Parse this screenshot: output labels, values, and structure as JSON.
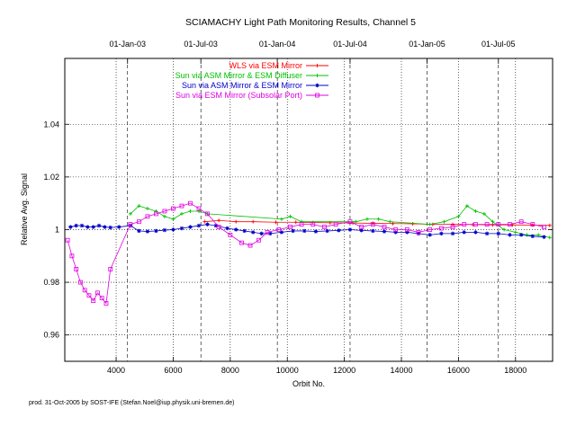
{
  "footer_note": "prod. 31-Oct-2005 by SOST-IFE (Stefan.Noel@iup.physik.uni-bremen.de)",
  "chart_data": {
    "type": "scatter",
    "title": "SCIAMACHY Light Path Monitoring Results, Channel 5",
    "xlabel": "Orbit No.",
    "ylabel": "Relative Avg. Signal",
    "xlim": [
      2200,
      19300
    ],
    "ylim": [
      0.95,
      1.065
    ],
    "x_ticks": [
      4000,
      6000,
      8000,
      10000,
      12000,
      14000,
      16000,
      18000
    ],
    "x_tick_labels": [
      "4000",
      "6000",
      "8000",
      "10000",
      "12000",
      "14000",
      "16000",
      "18000"
    ],
    "y_ticks": [
      0.96,
      0.98,
      1.0,
      1.02,
      1.04
    ],
    "y_tick_labels": [
      "0.96",
      "0.98",
      "1",
      "1.02",
      "1.04"
    ],
    "top_axis": {
      "ticks": [
        4400,
        6970,
        9650,
        12200,
        14900,
        17400
      ],
      "labels": [
        "01-Jan-03",
        "01-Jul-03",
        "01-Jan-04",
        "01-Jul-04",
        "01-Jan-05",
        "01-Jul-05"
      ]
    },
    "grid": true,
    "legend_position": "top",
    "series": [
      {
        "name": "WLS via ESM Mirror",
        "color": "#ff0000",
        "marker": "plus",
        "x": [
          7100,
          7600,
          8200,
          8800,
          9600,
          10300,
          10900,
          11500,
          12300,
          13000,
          13700,
          14400,
          15100,
          15800,
          16500,
          17200,
          17900,
          18600,
          19200
        ],
        "y": [
          1.003,
          1.0035,
          1.003,
          1.003,
          1.0028,
          1.0028,
          1.0027,
          1.0026,
          1.0025,
          1.0024,
          1.0023,
          1.0022,
          1.002,
          1.002,
          1.0019,
          1.0018,
          1.0018,
          1.0017,
          1.0016
        ]
      },
      {
        "name": "Sun via ASM Mirror & ESM Diffuser",
        "color": "#00c000",
        "marker": "plus",
        "x": [
          4500,
          4800,
          5100,
          5400,
          5700,
          6000,
          6300,
          6600,
          6900,
          7200,
          9800,
          10100,
          10500,
          12400,
          12800,
          13200,
          13600,
          15000,
          15500,
          16000,
          16300,
          16600,
          16900,
          17200,
          17600,
          18000,
          18400,
          18800,
          19200
        ],
        "y": [
          1.006,
          1.009,
          1.008,
          1.007,
          1.005,
          1.004,
          1.006,
          1.007,
          1.007,
          1.006,
          1.004,
          1.005,
          1.003,
          1.003,
          1.004,
          1.004,
          1.003,
          1.002,
          1.003,
          1.005,
          1.009,
          1.007,
          1.006,
          1.003,
          1.0,
          0.999,
          0.998,
          0.998,
          0.997
        ]
      },
      {
        "name": "Sun via ASM Mirror & ESM Mirror",
        "color": "#0000c8",
        "marker": "star",
        "x": [
          2400,
          2600,
          2800,
          3000,
          3200,
          3400,
          3600,
          3800,
          4100,
          4500,
          4800,
          5100,
          5400,
          5700,
          6000,
          6300,
          6600,
          6900,
          7200,
          7500,
          7900,
          8200,
          8500,
          8800,
          9100,
          9400,
          9800,
          10200,
          10600,
          11000,
          11400,
          11800,
          12200,
          12600,
          13000,
          13400,
          13800,
          14200,
          14600,
          15000,
          15400,
          15800,
          16200,
          16600,
          17000,
          17400,
          17800,
          18200,
          18600,
          19000
        ],
        "y": [
          1.001,
          1.0015,
          1.0015,
          1.001,
          1.001,
          1.0015,
          1.001,
          1.0008,
          1.001,
          1.0015,
          0.9995,
          0.9993,
          0.9995,
          0.9998,
          1.0,
          1.0005,
          1.001,
          1.0015,
          1.002,
          1.0015,
          1.0005,
          1.0,
          0.9995,
          0.999,
          0.9985,
          0.9985,
          0.999,
          0.9995,
          0.9995,
          0.9993,
          0.9995,
          0.9997,
          1.0,
          0.9997,
          0.9995,
          0.9993,
          0.999,
          0.999,
          0.9985,
          0.998,
          0.9985,
          0.9985,
          0.999,
          0.999,
          0.9985,
          0.9985,
          0.998,
          0.998,
          0.9975,
          0.9972
        ]
      },
      {
        "name": "Sun via ESM Mirror (Subsolar Port)",
        "color": "#e000e0",
        "marker": "square",
        "x": [
          2300,
          2450,
          2600,
          2750,
          2900,
          3050,
          3200,
          3350,
          3500,
          3650,
          3800,
          4500,
          4800,
          5100,
          5400,
          5700,
          6000,
          6300,
          6600,
          6900,
          7200,
          7600,
          8000,
          8400,
          8700,
          9000,
          9300,
          9700,
          10100,
          10500,
          10900,
          11300,
          11700,
          12200,
          12600,
          13000,
          13400,
          13800,
          14200,
          14600,
          15000,
          15400,
          15800,
          16200,
          16600,
          17000,
          17400,
          17800,
          18200,
          18600,
          19000
        ],
        "y": [
          0.996,
          0.99,
          0.985,
          0.98,
          0.977,
          0.975,
          0.973,
          0.976,
          0.974,
          0.972,
          0.985,
          1.002,
          1.003,
          1.005,
          1.006,
          1.007,
          1.008,
          1.009,
          1.01,
          1.008,
          1.006,
          1.001,
          0.998,
          0.995,
          0.994,
          0.996,
          0.999,
          1.0,
          1.001,
          1.002,
          1.002,
          1.001,
          1.002,
          1.003,
          1.001,
          1.002,
          1.001,
          1.0,
          1.0,
          0.999,
          1.0,
          1.0005,
          1.001,
          1.002,
          1.002,
          1.002,
          1.002,
          1.002,
          1.003,
          1.002,
          1.001
        ]
      }
    ]
  }
}
